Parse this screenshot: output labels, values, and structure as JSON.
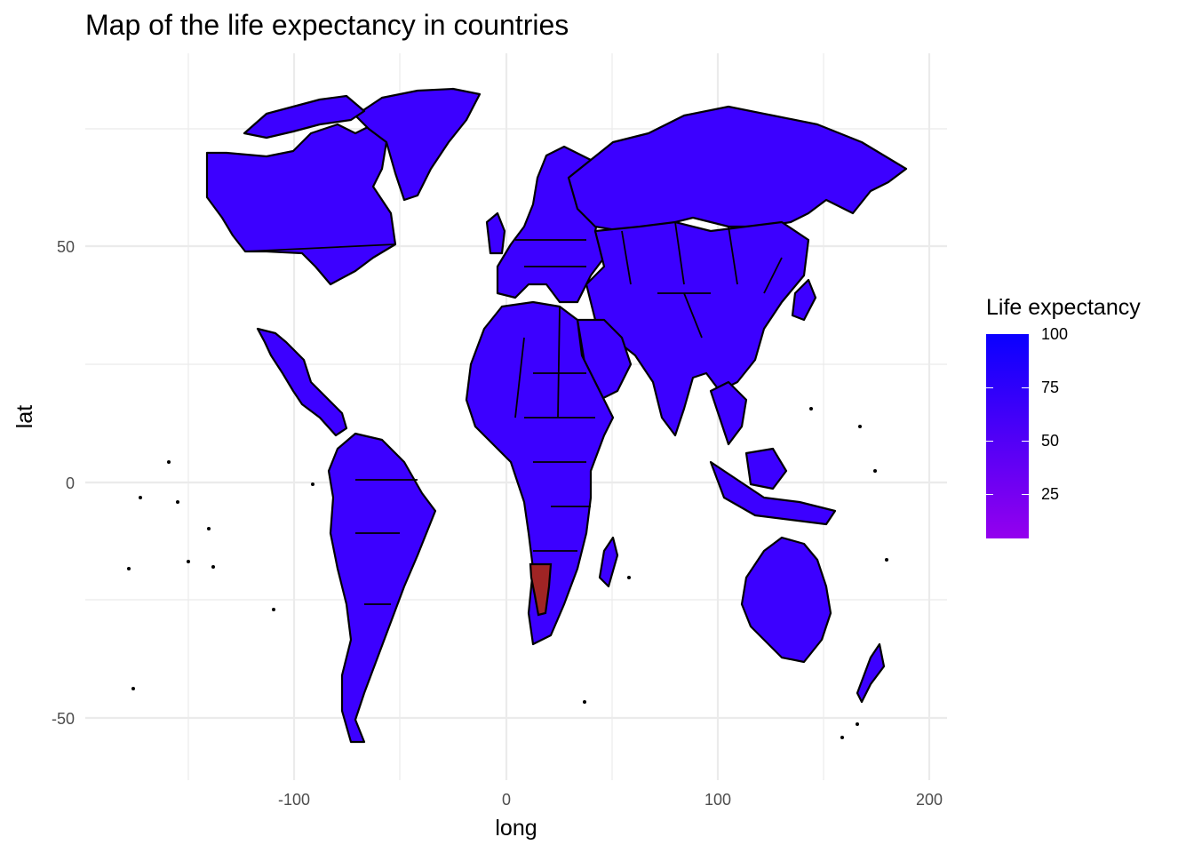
{
  "title": "Map of the life expectancy in countries",
  "x_axis": {
    "label": "long",
    "ticks": [
      "-100",
      "0",
      "100",
      "200"
    ]
  },
  "y_axis": {
    "label": "lat",
    "ticks": [
      "50",
      "0",
      "-50"
    ]
  },
  "legend": {
    "title": "Life expectancy",
    "ticks": [
      "100",
      "75",
      "50",
      "25"
    ],
    "low_color": "#9400ee",
    "high_color": "#0a00ff"
  },
  "colors": {
    "fill_high": "#3c00ff",
    "fill_mid": "#4a00f0",
    "fill_low": "#a02424",
    "border": "#000000",
    "grid": "#ebebeb"
  },
  "map_data": {
    "type": "choropleth",
    "variable": "Life expectancy",
    "xlim": [
      -180,
      200
    ],
    "ylim": [
      -60,
      85
    ],
    "legend_position": "right",
    "highlighted_region": {
      "fill": "#a02424"
    }
  }
}
